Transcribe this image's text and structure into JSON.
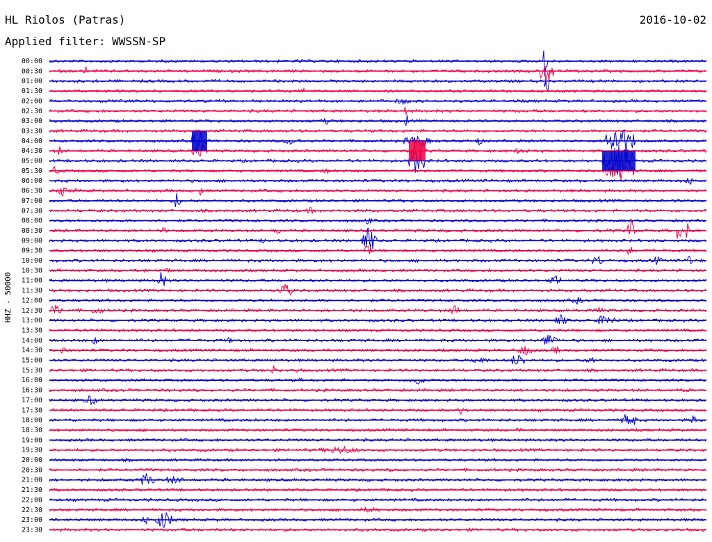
{
  "header": {
    "station": "HL Riolos (Patras)",
    "filter": "Applied filter: WWSSN-SP",
    "date": "2016-10-02"
  },
  "chart_data": {
    "type": "helicorder",
    "title": "HL Riolos (Patras)",
    "subtitle": "Applied filter: WWSSN-SP",
    "date": "2016-10-02",
    "ylabel": "HHZ - 50000",
    "row_labels": [
      "00:00",
      "00:30",
      "01:00",
      "01:30",
      "02:00",
      "02:30",
      "03:00",
      "03:30",
      "04:00",
      "04:30",
      "05:00",
      "05:30",
      "06:00",
      "06:30",
      "07:00",
      "07:30",
      "08:00",
      "08:30",
      "09:00",
      "09:30",
      "10:00",
      "10:30",
      "11:00",
      "11:30",
      "12:00",
      "12:30",
      "13:00",
      "13:30",
      "14:00",
      "14:30",
      "15:00",
      "15:30",
      "16:00",
      "16:30",
      "17:00",
      "17:30",
      "18:00",
      "18:30",
      "19:00",
      "19:30",
      "20:00",
      "20:30",
      "21:00",
      "21:30",
      "22:00",
      "22:30",
      "23:00",
      "23:30"
    ],
    "trace_colors": [
      "#0000cc",
      "#ee0044"
    ],
    "grid": false
  }
}
